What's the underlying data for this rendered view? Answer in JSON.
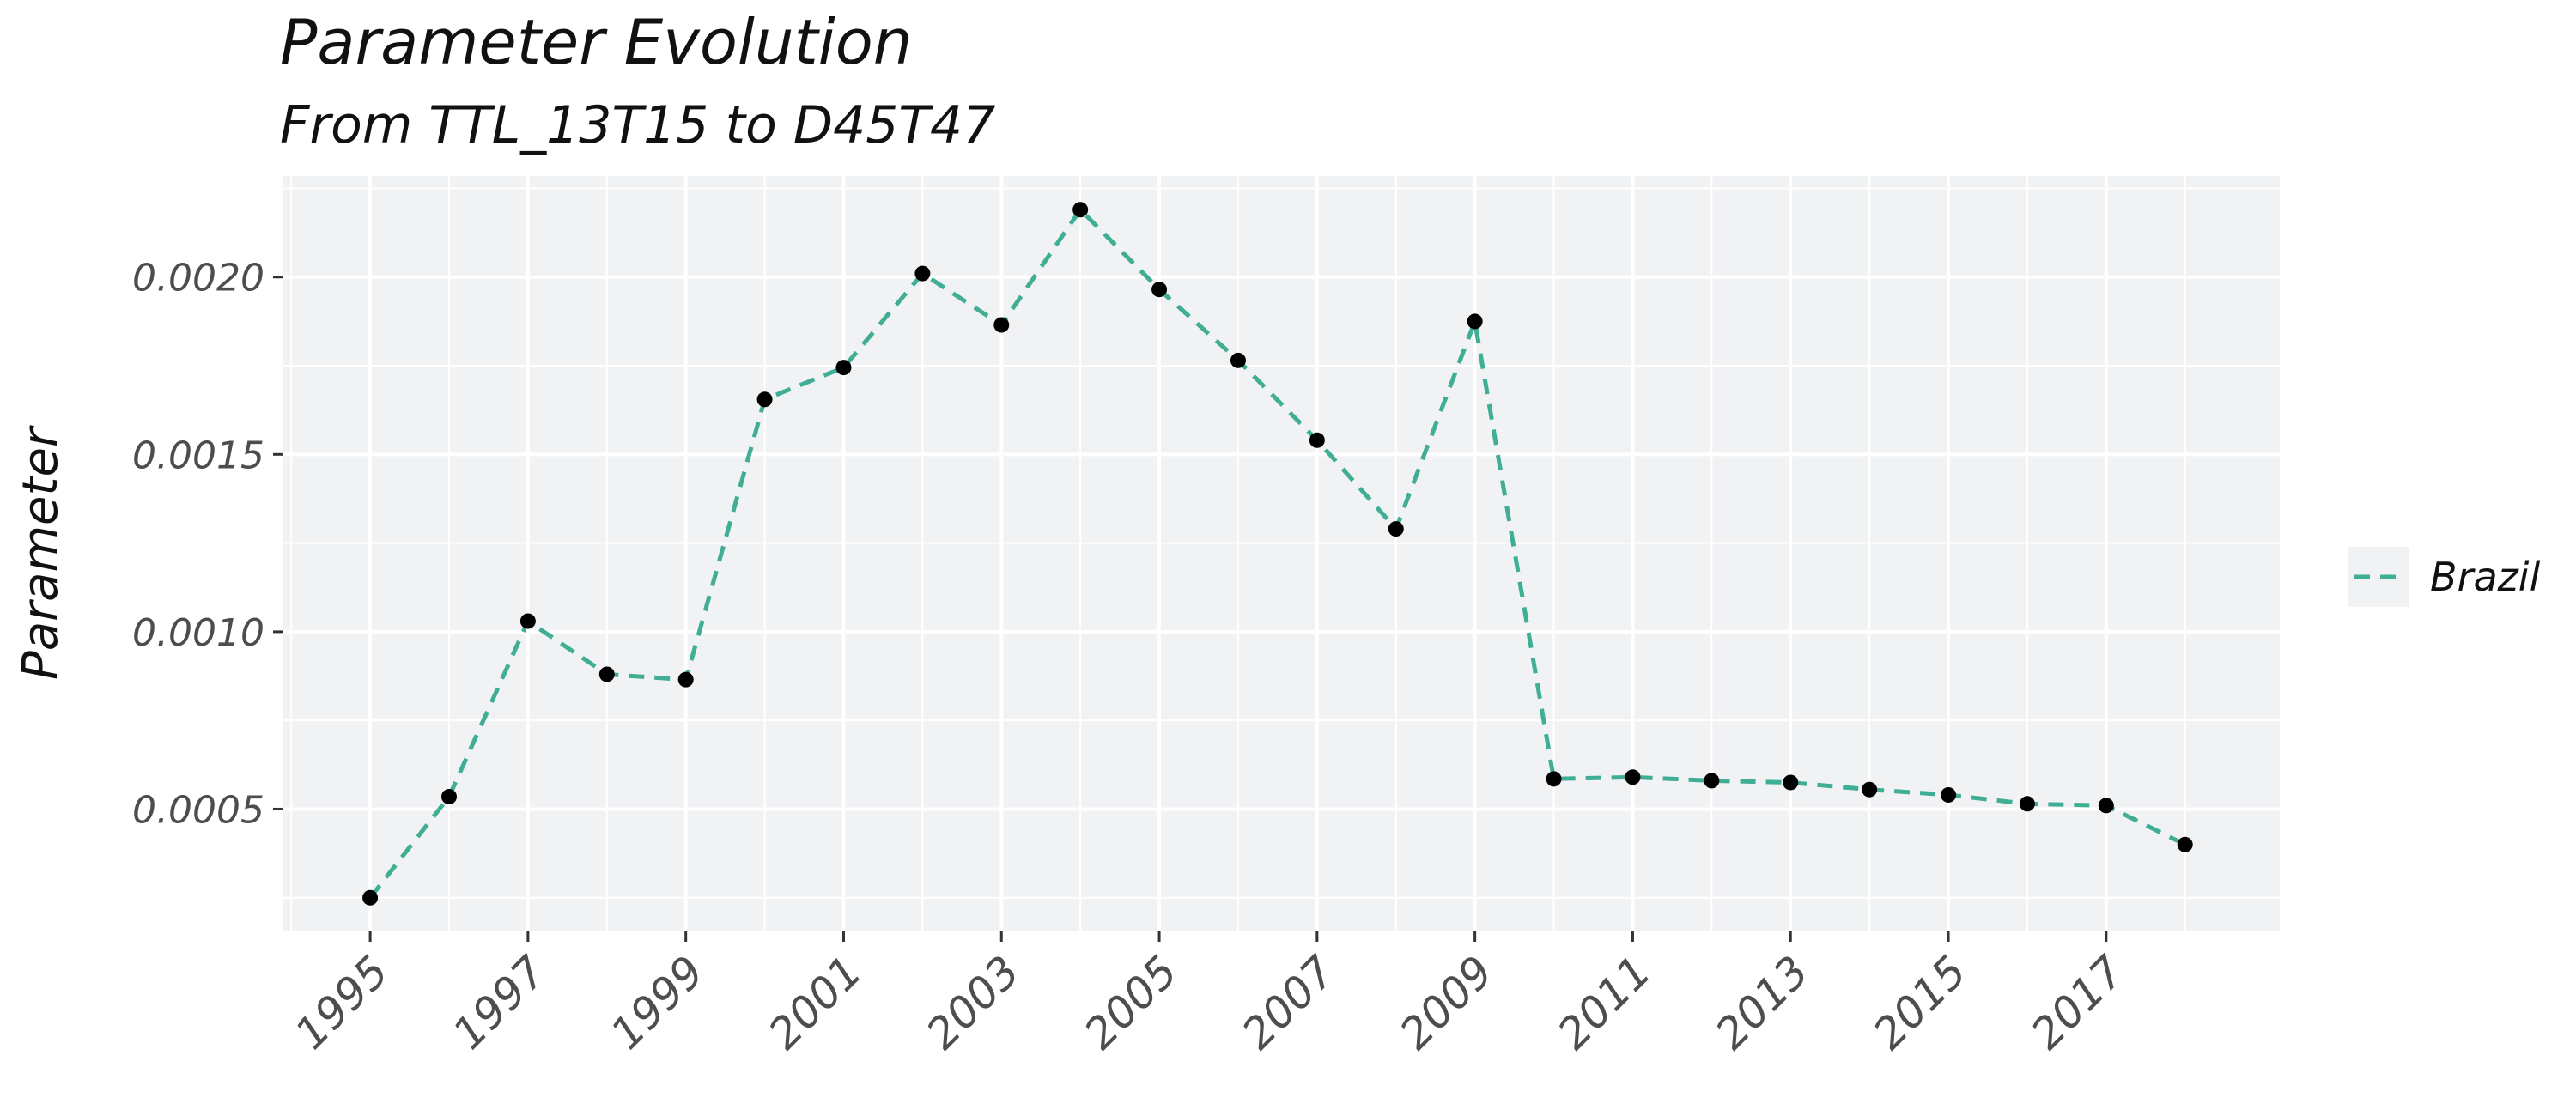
{
  "chart_data": {
    "type": "line",
    "title": "Parameter Evolution",
    "subtitle": "From TTL_13T15 to D45T47",
    "xlabel": "",
    "ylabel": "Parameter",
    "x": [
      1995,
      1996,
      1997,
      1998,
      1999,
      2000,
      2001,
      2002,
      2003,
      2004,
      2005,
      2006,
      2007,
      2008,
      2009,
      2010,
      2011,
      2012,
      2013,
      2014,
      2015,
      2016,
      2017,
      2018
    ],
    "x_ticks": [
      "1995",
      "1997",
      "1999",
      "2001",
      "2003",
      "2005",
      "2007",
      "2009",
      "2011",
      "2013",
      "2015",
      "2017"
    ],
    "y_ticks": [
      "0.0005",
      "0.0010",
      "0.0015",
      "0.0020"
    ],
    "xlim": [
      1993.9,
      2019.2
    ],
    "ylim": [
      0.000155,
      0.002285
    ],
    "series": [
      {
        "name": "Brazil",
        "color": "#3fae94",
        "line_style": "dashed",
        "point_color": "#000000",
        "values": [
          0.00025,
          0.000535,
          0.00103,
          0.00088,
          0.000865,
          0.001655,
          0.001745,
          0.00201,
          0.001865,
          0.00219,
          0.001965,
          0.001765,
          0.00154,
          0.00129,
          0.001875,
          0.000585,
          0.00059,
          0.00058,
          0.000575,
          0.000555,
          0.00054,
          0.000515,
          0.00051,
          0.0004
        ]
      }
    ],
    "grid": true,
    "legend": "right",
    "colors": {
      "panel_background": "#f1f2f4",
      "gridline": "#ffffff",
      "legend_key_background": "#f1f2f4"
    }
  }
}
